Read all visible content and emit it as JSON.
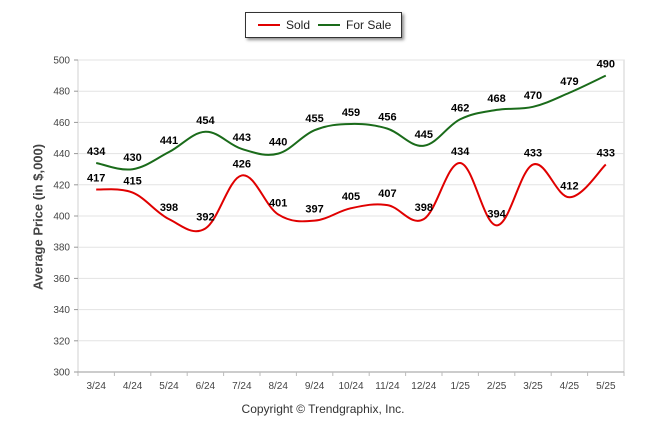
{
  "chart_data": {
    "type": "line",
    "categories": [
      "3/24",
      "4/24",
      "5/24",
      "6/24",
      "7/24",
      "8/24",
      "9/24",
      "10/24",
      "11/24",
      "12/24",
      "1/25",
      "2/25",
      "3/25",
      "4/25",
      "5/25"
    ],
    "series": [
      {
        "name": "Sold",
        "color": "#e00000",
        "values": [
          417,
          415,
          398,
          392,
          426,
          401,
          397,
          405,
          407,
          398,
          434,
          394,
          433,
          412,
          433
        ]
      },
      {
        "name": "For Sale",
        "color": "#1a6b1a",
        "values": [
          434,
          430,
          441,
          454,
          443,
          440,
          455,
          459,
          456,
          445,
          462,
          468,
          470,
          479,
          490
        ]
      }
    ],
    "ylabel": "Average Price (in $,000)",
    "ylim": [
      300,
      500
    ],
    "yticks": [
      "300",
      "320",
      "340",
      "360",
      "380",
      "400",
      "420",
      "440",
      "460",
      "480",
      "500"
    ],
    "grid": true,
    "legend_position": "top-center"
  },
  "copyright": "Copyright © Trendgraphix, Inc."
}
